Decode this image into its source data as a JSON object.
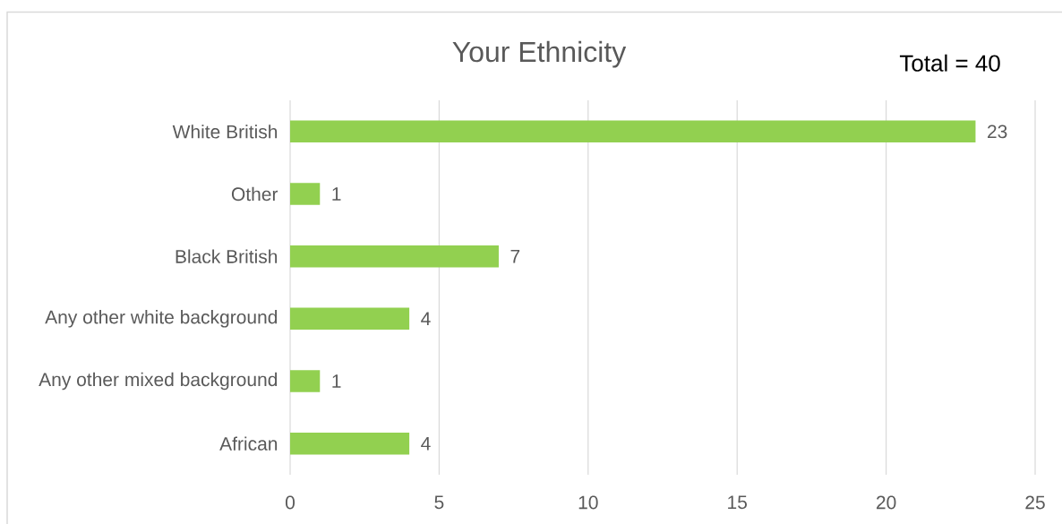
{
  "chart_data": {
    "type": "bar",
    "orientation": "horizontal",
    "title": "Your Ethnicity",
    "categories": [
      "White British",
      "Other",
      "Black British",
      "Any other white background",
      "Any other mixed background",
      "African"
    ],
    "values": [
      23,
      1,
      7,
      4,
      1,
      4
    ],
    "color": "#92d050",
    "xlim": [
      0,
      25
    ],
    "xticks": [
      0,
      5,
      10,
      15,
      20,
      25
    ],
    "grid": "x",
    "data_labels": true,
    "annotations": [
      "Total = 40"
    ]
  }
}
